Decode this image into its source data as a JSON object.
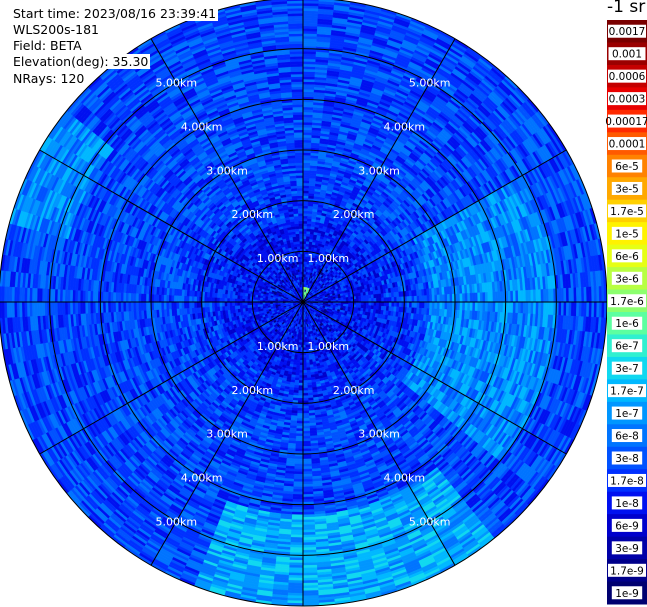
{
  "header": {
    "start_time": "Start time: 2023/08/16 23:39:41",
    "instrument": "WLS200s-181",
    "field": "Field: BETA",
    "elevation": "Elevation(deg): 35.30",
    "nrays": "NRays: 120"
  },
  "colorbar": {
    "unit_label": "-1 sr",
    "ticks": [
      "0.0017",
      "0.001",
      "0.0006",
      "0.0003",
      "0.00017",
      "0.0001",
      "6e-5",
      "3e-5",
      "1.7e-5",
      "1e-5",
      "6e-6",
      "3e-6",
      "1.7e-6",
      "1e-6",
      "6e-7",
      "3e-7",
      "1.7e-7",
      "1e-7",
      "6e-8",
      "3e-8",
      "1.7e-8",
      "1e-8",
      "6e-9",
      "3e-9",
      "1.7e-9",
      "1e-9"
    ],
    "colors": [
      "#7a0000",
      "#9a0000",
      "#c40000",
      "#e80000",
      "#ff2a00",
      "#ff5a00",
      "#ff8200",
      "#ffa800",
      "#ffd000",
      "#fff200",
      "#e6ff14",
      "#b8ff42",
      "#8cff6e",
      "#5cffa0",
      "#30f0d0",
      "#10d8f0",
      "#00b8ff",
      "#0096ff",
      "#0074ff",
      "#0052ff",
      "#0030ff",
      "#0010f0",
      "#0000cc",
      "#0000a8",
      "#00008a",
      "#000070"
    ]
  },
  "chart_data": {
    "type": "heatmap",
    "subtype": "polar-ppi",
    "field": "BETA",
    "elevation_deg": 35.3,
    "n_rays": 120,
    "range_unit": "km",
    "range_max_km": 6.0,
    "range_ring_km": [
      1.0,
      2.0,
      3.0,
      4.0,
      5.0
    ],
    "range_ring_labels": [
      "1.00km",
      "2.00km",
      "3.00km",
      "4.00km",
      "5.00km"
    ],
    "azimuth_spokes_deg": [
      0,
      30,
      60,
      90,
      120,
      150,
      180,
      210,
      240,
      270,
      300,
      330
    ],
    "color_scale": "log",
    "color_range": [
      1e-09,
      0.0017
    ],
    "typical_value": "1e-8 to 6e-8",
    "elevated_regions": [
      {
        "azimuth_deg": [
          60,
          130
        ],
        "range_km": [
          2.5,
          5.0
        ],
        "approx_value": "1e-7"
      },
      {
        "azimuth_deg": [
          140,
          200
        ],
        "range_km": [
          4.2,
          6.0
        ],
        "approx_value": "1.7e-7"
      },
      {
        "azimuth_deg": [
          285,
          310
        ],
        "range_km": [
          4.8,
          6.0
        ],
        "approx_value": "1e-7"
      }
    ],
    "near_range_echo": {
      "azimuth_deg": [
        0,
        30
      ],
      "range_km": [
        0.0,
        0.3
      ],
      "approx_value": "1e-6"
    },
    "range_ring_label_azimuths_deg": [
      -30,
      30,
      150,
      210
    ]
  }
}
